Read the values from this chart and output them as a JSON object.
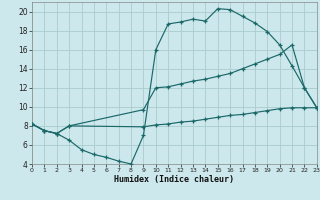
{
  "xlabel": "Humidex (Indice chaleur)",
  "bg_color": "#cde8ec",
  "grid_color": "#aacccc",
  "line_color": "#1a6868",
  "xlim": [
    0,
    23
  ],
  "ylim": [
    4,
    21
  ],
  "xtick_vals": [
    0,
    1,
    2,
    3,
    4,
    5,
    6,
    7,
    8,
    9,
    10,
    11,
    12,
    13,
    14,
    15,
    16,
    17,
    18,
    19,
    20,
    21,
    22,
    23
  ],
  "ytick_vals": [
    4,
    6,
    8,
    10,
    12,
    14,
    16,
    18,
    20
  ],
  "curve1_x": [
    0,
    1,
    2,
    3,
    4,
    5,
    6,
    7,
    8,
    9,
    10,
    11,
    12,
    13,
    14,
    15,
    16,
    17,
    18,
    19,
    20,
    21,
    22,
    23
  ],
  "curve1_y": [
    8.2,
    7.5,
    7.2,
    6.5,
    5.5,
    5.0,
    4.7,
    4.3,
    4.0,
    7.0,
    16.0,
    18.7,
    18.9,
    19.2,
    19.0,
    20.3,
    20.2,
    19.5,
    18.8,
    17.9,
    16.5,
    14.3,
    12.0,
    9.9
  ],
  "curve2_x": [
    0,
    1,
    2,
    3,
    9,
    10,
    11,
    12,
    13,
    14,
    15,
    16,
    17,
    18,
    19,
    20,
    21,
    22,
    23
  ],
  "curve2_y": [
    8.2,
    7.5,
    7.2,
    8.0,
    9.7,
    12.0,
    12.1,
    12.4,
    12.7,
    12.9,
    13.2,
    13.5,
    14.0,
    14.5,
    15.0,
    15.5,
    16.5,
    12.0,
    9.9
  ],
  "curve3_x": [
    0,
    1,
    2,
    3,
    9,
    10,
    11,
    12,
    13,
    14,
    15,
    16,
    17,
    18,
    19,
    20,
    21,
    22,
    23
  ],
  "curve3_y": [
    8.2,
    7.5,
    7.2,
    8.0,
    7.9,
    8.1,
    8.2,
    8.4,
    8.5,
    8.7,
    8.9,
    9.1,
    9.2,
    9.4,
    9.6,
    9.8,
    9.9,
    9.9,
    9.9
  ]
}
